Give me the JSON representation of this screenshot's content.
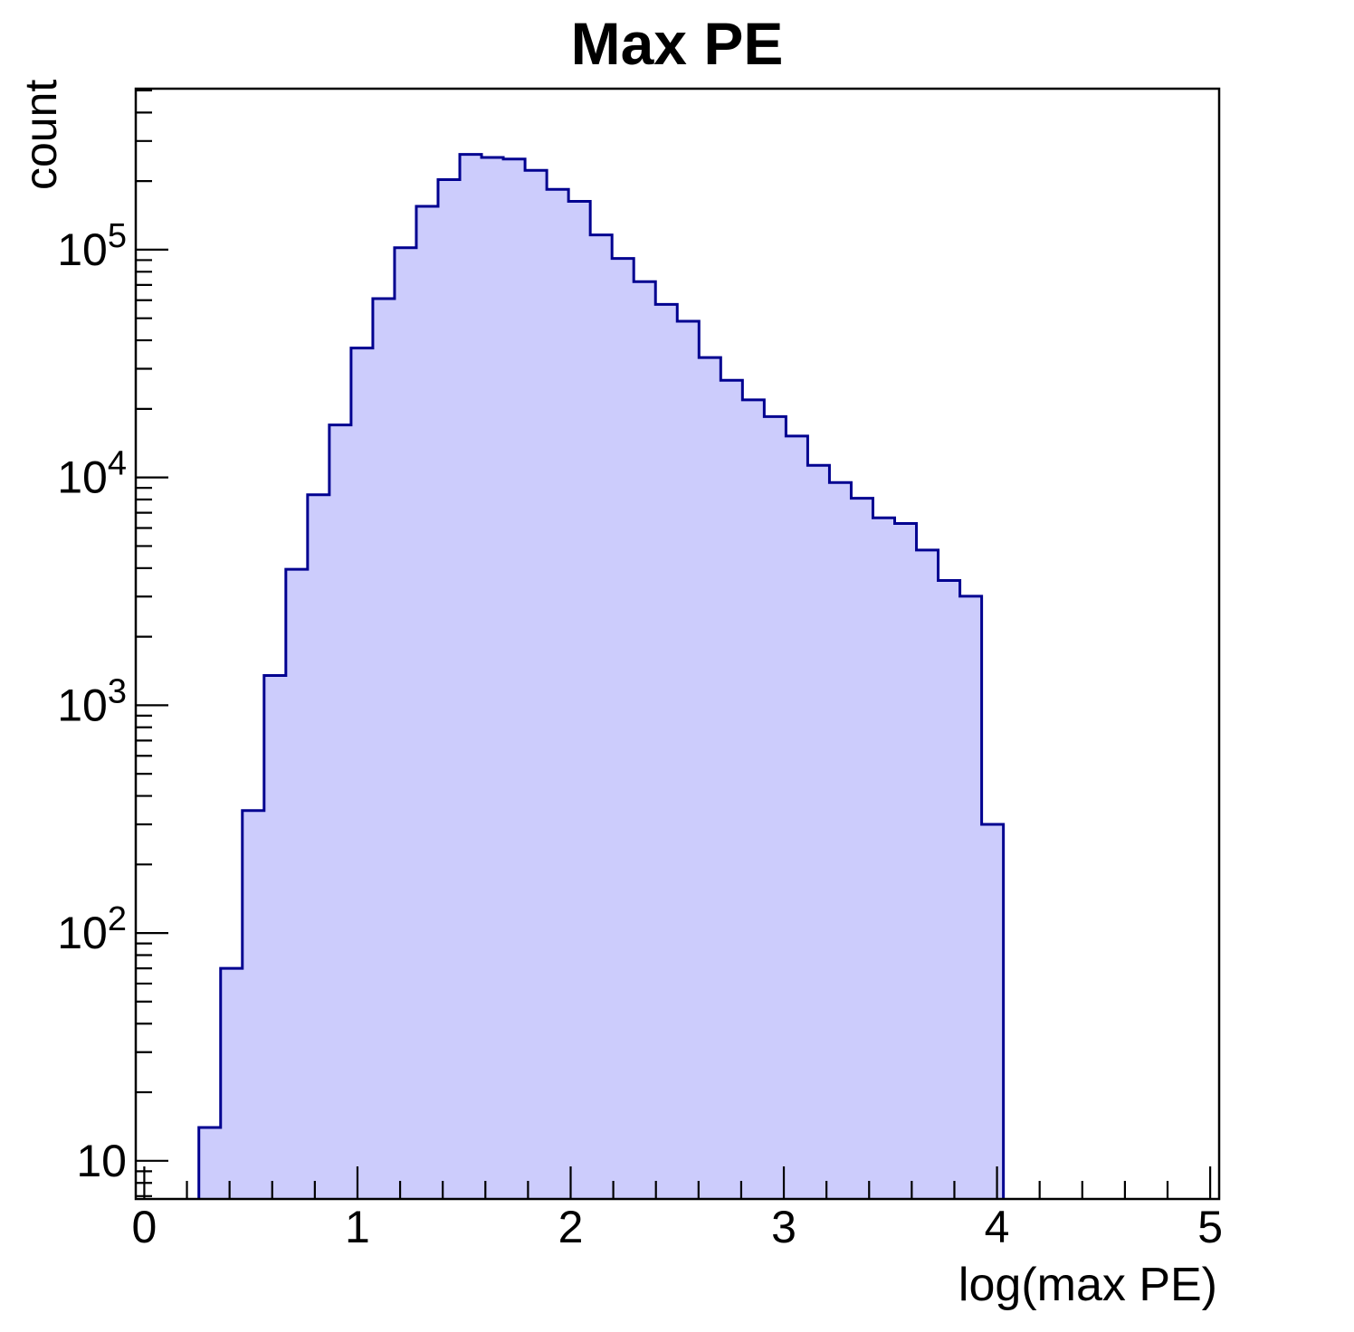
{
  "chart_data": {
    "type": "histogram",
    "title": "Max PE",
    "xlabel": "log(max PE)",
    "ylabel": "count",
    "x_axis": {
      "min": -0.04,
      "max": 5.042,
      "major_ticks": [
        0,
        1,
        2,
        3,
        4,
        5
      ],
      "minor_tick_step": 0.2
    },
    "y_axis": {
      "scale": "log",
      "min": 6.8,
      "max": 509000,
      "major_ticks": [
        10,
        100,
        1000,
        10000,
        100000
      ]
    },
    "bins": {
      "first_edge": 0.256,
      "bin_width": 0.102,
      "counts": [
        14,
        70,
        345,
        1350,
        3950,
        8400,
        17000,
        37000,
        61000,
        102000,
        155000,
        203000,
        262000,
        254000,
        250000,
        223000,
        184000,
        163000,
        116000,
        91500,
        72400,
        57500,
        48500,
        33600,
        26700,
        21900,
        18500,
        15200,
        11300,
        9500,
        8100,
        6650,
        6280,
        4800,
        3530,
        3010,
        300
      ]
    },
    "style": {
      "fill_color": "#ccccfc",
      "line_color": "#000090",
      "axis_color": "#000000",
      "background": "#ffffff"
    }
  }
}
